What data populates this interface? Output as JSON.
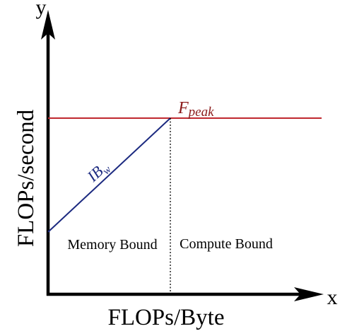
{
  "axes": {
    "x_letter": "x",
    "y_letter": "y",
    "x_title": "FLOPs/Byte",
    "y_title": "FLOPs/second"
  },
  "peak_label": {
    "base": "F",
    "subscript": "peak"
  },
  "bandwidth_label": {
    "base": "IB",
    "subscript": "w"
  },
  "regions": {
    "memory": "Memory Bound",
    "compute": "Compute Bound"
  },
  "colors": {
    "axis": "#000000",
    "peak_line": "#c0282f",
    "peak_label": "#8b1a1a",
    "bandwidth_line": "#1c2a80",
    "bandwidth_label": "#1c2a80",
    "ridge_line": "#000000"
  }
}
